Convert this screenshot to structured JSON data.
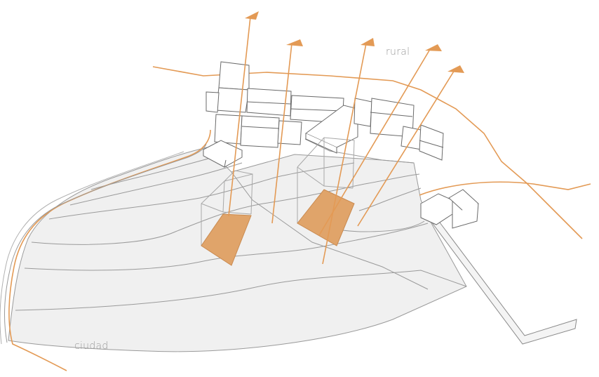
{
  "labels": {
    "rural": "rural",
    "ciudad": "ciudad"
  },
  "colors": {
    "accent": "#e39a55",
    "plot_fill": "#e0a46a",
    "terrain_fill": "#efefef",
    "line": "#8a8a8a",
    "background": "#ffffff"
  }
}
